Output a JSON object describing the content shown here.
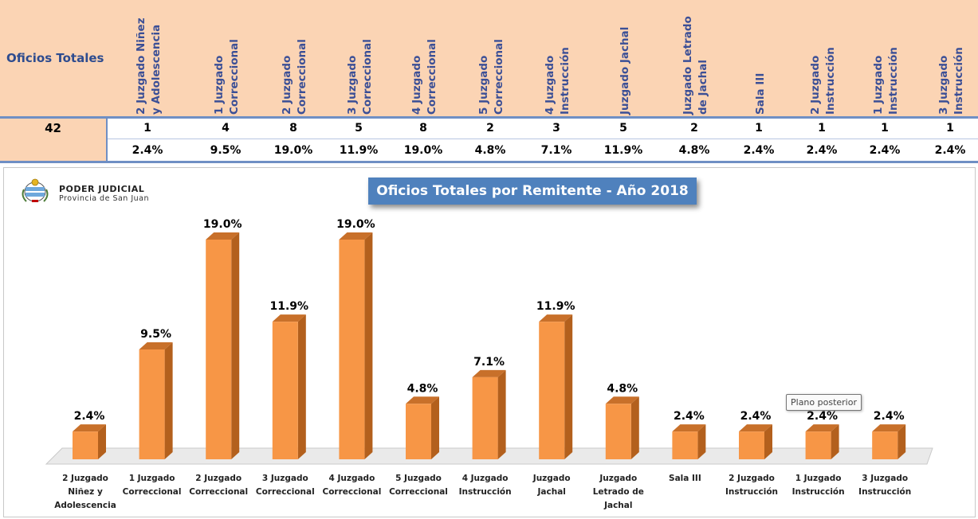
{
  "header": {
    "title": "Oficios Totales",
    "total": "42"
  },
  "columns": [
    {
      "label": "2 Juzgado Niñez\ny Adolescencia",
      "count": "1",
      "pct": "2.4%"
    },
    {
      "label": "1 Juzgado\nCorreccional",
      "count": "4",
      "pct": "9.5%"
    },
    {
      "label": "2 Juzgado\nCorreccional",
      "count": "8",
      "pct": "19.0%"
    },
    {
      "label": "3 Juzgado\nCorreccional",
      "count": "5",
      "pct": "11.9%"
    },
    {
      "label": "4 Juzgado\nCorreccional",
      "count": "8",
      "pct": "19.0%"
    },
    {
      "label": "5 Juzgado\nCorreccional",
      "count": "2",
      "pct": "4.8%"
    },
    {
      "label": "4 Juzgado\nInstrucción",
      "count": "3",
      "pct": "7.1%"
    },
    {
      "label": "Juzgado Jachal",
      "count": "5",
      "pct": "11.9%"
    },
    {
      "label": "Juzgado Letrado\nde Jachal",
      "count": "2",
      "pct": "4.8%"
    },
    {
      "label": "Sala III",
      "count": "1",
      "pct": "2.4%"
    },
    {
      "label": "2 Juzgado\nInstrucción",
      "count": "1",
      "pct": "2.4%"
    },
    {
      "label": "1 Juzgado\nInstrucción",
      "count": "1",
      "pct": "2.4%"
    },
    {
      "label": "3 Juzgado\nInstrucción",
      "count": "1",
      "pct": "2.4%"
    }
  ],
  "logo": {
    "line1": "PODER JUDICIAL",
    "line2": "Provincia de San Juan"
  },
  "tooltip": "Plano posterior",
  "colors": {
    "header_bg": "#fbd4b4",
    "header_text": "#3b4f96",
    "bar_front": "#f79646",
    "bar_side": "#b3601d",
    "bar_top": "#c8702a",
    "title_bg": "#4f81bd"
  },
  "chart_data": {
    "type": "bar",
    "title": "Oficios Totales por Remitente - Año 2018",
    "categories": [
      "2 Juzgado Niñez y Adolescencia",
      "1 Juzgado Correccional",
      "2 Juzgado Correccional",
      "3 Juzgado Correccional",
      "4 Juzgado Correccional",
      "5 Juzgado Correccional",
      "4 Juzgado Instrucción",
      "Juzgado Jachal",
      "Juzgado Letrado de Jachal",
      "Sala III",
      "2 Juzgado Instrucción",
      "1 Juzgado Instrucción",
      "3 Juzgado Instrucción"
    ],
    "category_lines": [
      [
        "2 Juzgado",
        "Niñez y",
        "Adolescencia"
      ],
      [
        "1 Juzgado",
        "Correccional"
      ],
      [
        "2 Juzgado",
        "Correccional"
      ],
      [
        "3 Juzgado",
        "Correccional"
      ],
      [
        "4 Juzgado",
        "Correccional"
      ],
      [
        "5 Juzgado",
        "Correccional"
      ],
      [
        "4 Juzgado",
        "Instrucción"
      ],
      [
        "Juzgado",
        "Jachal"
      ],
      [
        "Juzgado",
        "Letrado de",
        "Jachal"
      ],
      [
        "Sala III"
      ],
      [
        "2 Juzgado",
        "Instrucción"
      ],
      [
        "1 Juzgado",
        "Instrucción"
      ],
      [
        "3 Juzgado",
        "Instrucción"
      ]
    ],
    "values": [
      2.4,
      9.5,
      19.0,
      11.9,
      19.0,
      4.8,
      7.1,
      11.9,
      4.8,
      2.4,
      2.4,
      2.4,
      2.4
    ],
    "data_labels": [
      "2.4%",
      "9.5%",
      "19.0%",
      "11.9%",
      "19.0%",
      "4.8%",
      "7.1%",
      "11.9%",
      "4.8%",
      "2.4%",
      "2.4%",
      "2.4%",
      "2.4%"
    ],
    "ylim": [
      0,
      19.0
    ],
    "grid": false,
    "legend": "none",
    "style": "3d-column"
  }
}
